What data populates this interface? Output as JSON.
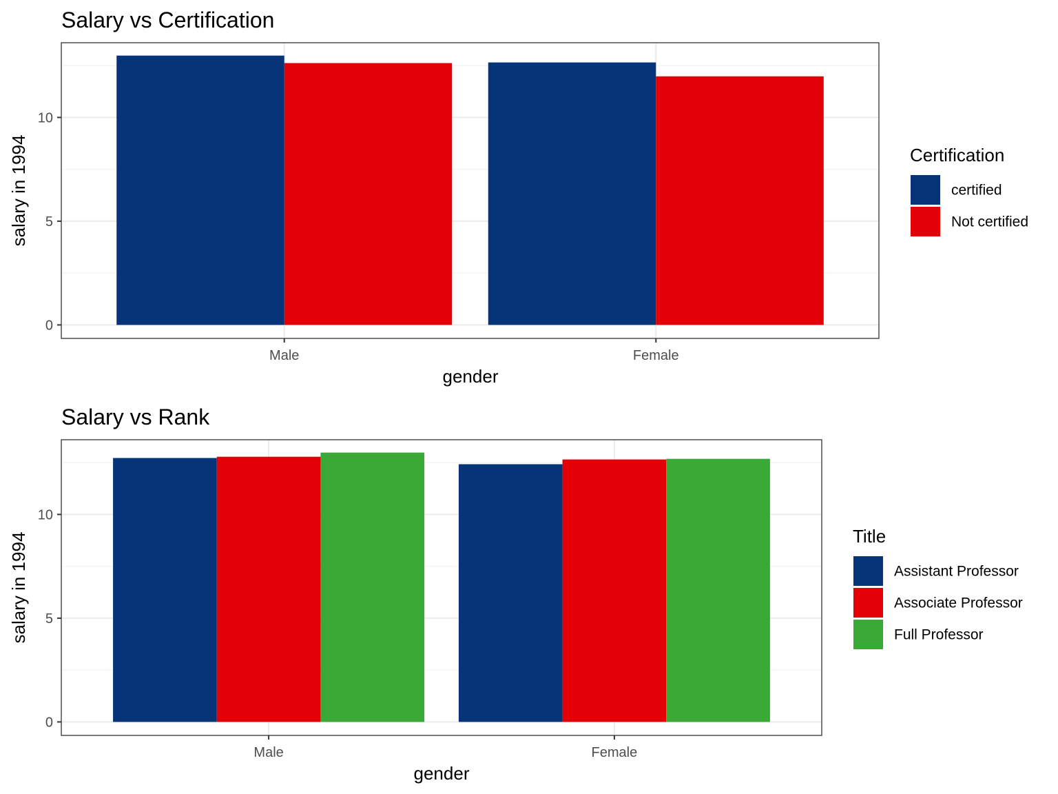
{
  "chart_data": [
    {
      "type": "bar",
      "title": "Salary vs Certification",
      "xlabel": "gender",
      "ylabel": "salary in 1994",
      "categories": [
        "Male",
        "Female"
      ],
      "ylim": [
        -0.65,
        13.6
      ],
      "yticks": [
        0,
        5,
        10
      ],
      "grid": true,
      "legend": {
        "title": "Certification",
        "placement": "right"
      },
      "series": [
        {
          "name": "certified",
          "color": "#063478",
          "values": [
            12.98,
            12.65
          ]
        },
        {
          "name": "Not certified",
          "color": "#E30006",
          "values": [
            12.62,
            11.98
          ]
        }
      ]
    },
    {
      "type": "bar",
      "title": "Salary vs Rank",
      "xlabel": "gender",
      "ylabel": "salary in 1994",
      "categories": [
        "Male",
        "Female"
      ],
      "ylim": [
        -0.65,
        13.6
      ],
      "yticks": [
        0,
        5,
        10
      ],
      "grid": true,
      "legend": {
        "title": "Title",
        "placement": "right"
      },
      "series": [
        {
          "name": "Assistant Professor",
          "color": "#063478",
          "values": [
            12.72,
            12.42
          ]
        },
        {
          "name": "Associate Professor",
          "color": "#E30006",
          "values": [
            12.78,
            12.65
          ]
        },
        {
          "name": "Full Professor",
          "color": "#3AA935",
          "values": [
            12.98,
            12.68
          ]
        }
      ]
    }
  ]
}
